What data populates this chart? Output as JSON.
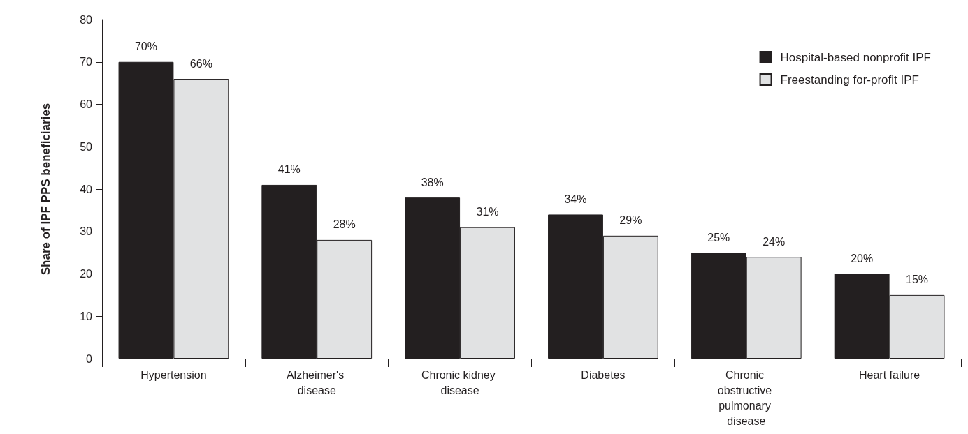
{
  "chart_data": {
    "type": "bar",
    "ylabel": "Share of IPF PPS beneficiaries",
    "categories": [
      "Hypertension",
      "Alzheimer's disease",
      "Chronic kidney disease",
      "Diabetes",
      "Chronic obstructive pulmonary disease",
      "Heart failure"
    ],
    "series": [
      {
        "name": "Hospital-based nonprofit IPF",
        "color": "#231f20",
        "values": [
          70,
          41,
          38,
          34,
          25,
          20
        ],
        "value_labels": [
          "70%",
          "41%",
          "38%",
          "34%",
          "25%",
          "20%"
        ]
      },
      {
        "name": "Freestanding for-profit IPF",
        "color": "#e1e2e3",
        "values": [
          66,
          28,
          31,
          29,
          24,
          15
        ],
        "value_labels": [
          "66%",
          "28%",
          "31%",
          "29%",
          "24%",
          "15%"
        ]
      }
    ],
    "ylim": [
      0,
      80
    ],
    "yticks": [
      0,
      10,
      20,
      30,
      40,
      50,
      60,
      70,
      80
    ],
    "grid": false,
    "legend": "top right"
  }
}
